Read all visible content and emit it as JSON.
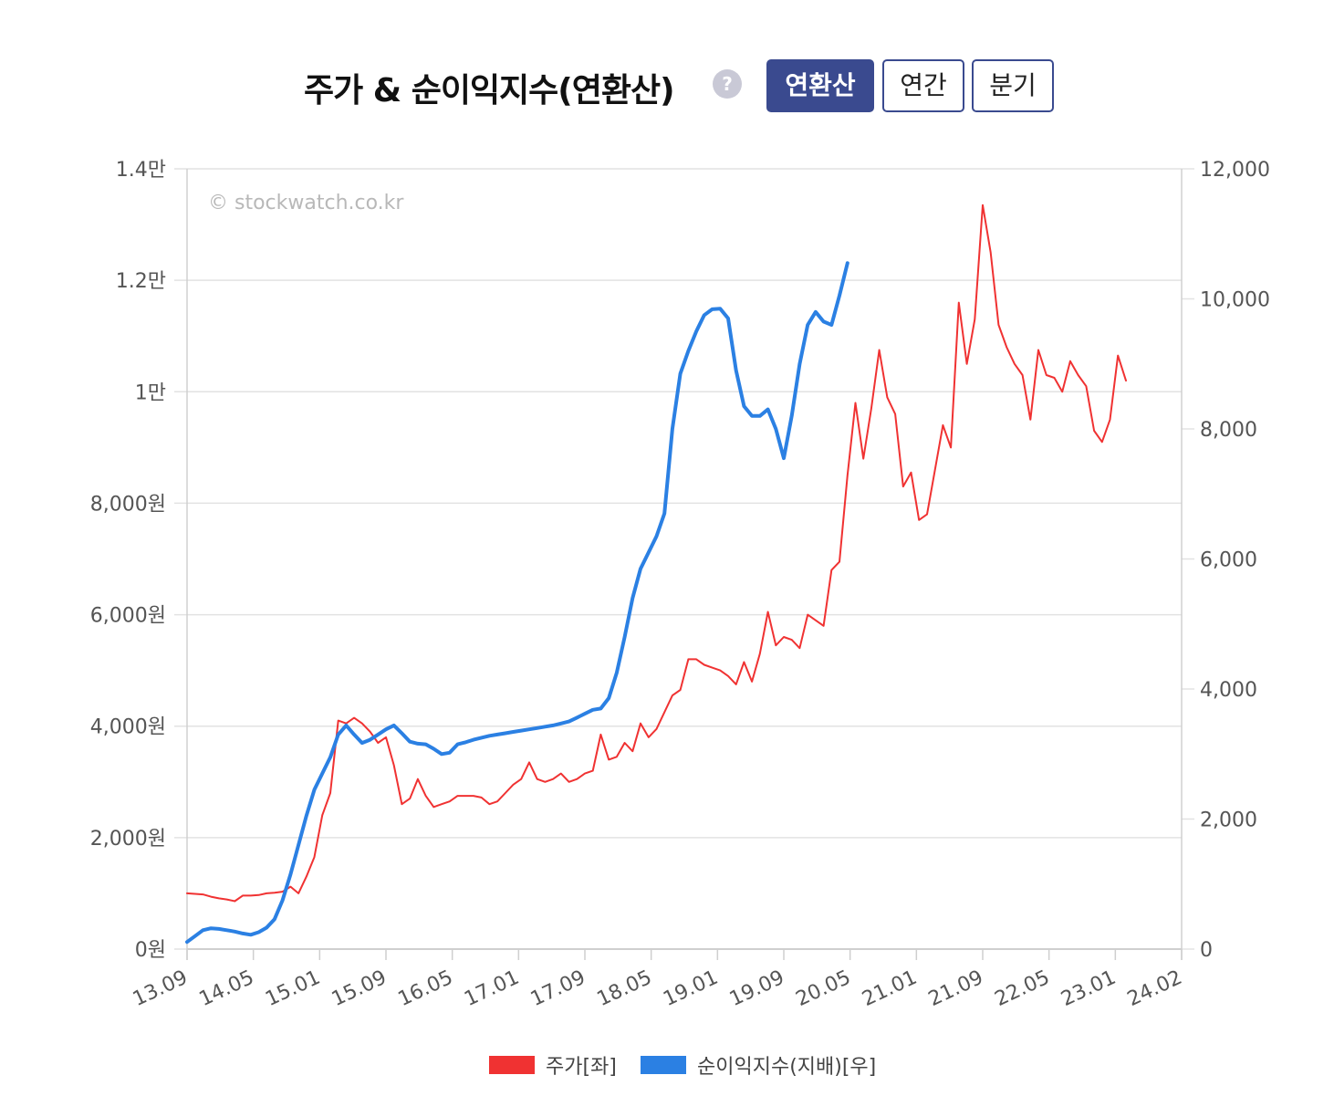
{
  "header": {
    "title": "주가 & 순이익지수(연환산)",
    "help_icon": "?",
    "tabs": [
      {
        "label": "연환산",
        "active": true
      },
      {
        "label": "연간",
        "active": false
      },
      {
        "label": "분기",
        "active": false
      }
    ]
  },
  "colors": {
    "price": "#f03232",
    "earnings": "#2b80e3",
    "tab_active": "#3a4a8f",
    "grid": "#e2e2e2",
    "axis_text": "#555555"
  },
  "chart_data": {
    "type": "line",
    "watermark": "© stockwatch.co.kr",
    "x_labels": [
      "13.09",
      "14.05",
      "15.01",
      "15.09",
      "16.05",
      "17.01",
      "17.09",
      "18.05",
      "19.01",
      "19.09",
      "20.05",
      "21.01",
      "21.09",
      "22.05",
      "23.01",
      "24.02"
    ],
    "x_range": [
      "2013-09",
      "2024-02"
    ],
    "y_left": {
      "min": 0,
      "max": 14000,
      "ticks": [
        0,
        2000,
        4000,
        6000,
        8000,
        10000,
        12000,
        14000
      ],
      "tick_labels": [
        "0원",
        "2,000원",
        "4,000원",
        "6,000원",
        "8,000원",
        "1만",
        "1.2만",
        "1.4만"
      ]
    },
    "y_right": {
      "min": 0,
      "max": 12000,
      "ticks": [
        0,
        2000,
        4000,
        6000,
        8000,
        10000,
        12000
      ],
      "tick_labels": [
        "0",
        "2,000",
        "4,000",
        "6,000",
        "8,000",
        "10,000",
        "12,000"
      ]
    },
    "grid": true,
    "legend_position": "bottom",
    "series": [
      {
        "name": "주가[좌]",
        "axis": "left",
        "points": [
          [
            "2013-09",
            1000
          ],
          [
            "2013-10",
            990
          ],
          [
            "2013-11",
            980
          ],
          [
            "2013-12",
            940
          ],
          [
            "2014-01",
            910
          ],
          [
            "2014-02",
            890
          ],
          [
            "2014-03",
            860
          ],
          [
            "2014-04",
            960
          ],
          [
            "2014-05",
            960
          ],
          [
            "2014-06",
            970
          ],
          [
            "2014-07",
            1000
          ],
          [
            "2014-08",
            1010
          ],
          [
            "2014-09",
            1030
          ],
          [
            "2014-10",
            1120
          ],
          [
            "2014-11",
            1000
          ],
          [
            "2014-12",
            1300
          ],
          [
            "2015-01",
            1650
          ],
          [
            "2015-02",
            2400
          ],
          [
            "2015-03",
            2800
          ],
          [
            "2015-04",
            4100
          ],
          [
            "2015-05",
            4050
          ],
          [
            "2015-06",
            4150
          ],
          [
            "2015-07",
            4050
          ],
          [
            "2015-08",
            3900
          ],
          [
            "2015-09",
            3700
          ],
          [
            "2015-10",
            3800
          ],
          [
            "2015-11",
            3300
          ],
          [
            "2015-12",
            2600
          ],
          [
            "2016-01",
            2700
          ],
          [
            "2016-02",
            3050
          ],
          [
            "2016-03",
            2750
          ],
          [
            "2016-04",
            2550
          ],
          [
            "2016-05",
            2600
          ],
          [
            "2016-06",
            2650
          ],
          [
            "2016-07",
            2750
          ],
          [
            "2016-08",
            2750
          ],
          [
            "2016-09",
            2750
          ],
          [
            "2016-10",
            2720
          ],
          [
            "2016-11",
            2600
          ],
          [
            "2016-12",
            2650
          ],
          [
            "2017-01",
            2800
          ],
          [
            "2017-02",
            2950
          ],
          [
            "2017-03",
            3050
          ],
          [
            "2017-04",
            3350
          ],
          [
            "2017-05",
            3050
          ],
          [
            "2017-06",
            3000
          ],
          [
            "2017-07",
            3050
          ],
          [
            "2017-08",
            3150
          ],
          [
            "2017-09",
            3000
          ],
          [
            "2017-10",
            3050
          ],
          [
            "2017-11",
            3150
          ],
          [
            "2017-12",
            3200
          ],
          [
            "2018-01",
            3850
          ],
          [
            "2018-02",
            3400
          ],
          [
            "2018-03",
            3450
          ],
          [
            "2018-04",
            3700
          ],
          [
            "2018-05",
            3550
          ],
          [
            "2018-06",
            4050
          ],
          [
            "2018-07",
            3800
          ],
          [
            "2018-08",
            3950
          ],
          [
            "2018-09",
            4250
          ],
          [
            "2018-10",
            4550
          ],
          [
            "2018-11",
            4650
          ],
          [
            "2018-12",
            5200
          ],
          [
            "2019-01",
            5200
          ],
          [
            "2019-02",
            5100
          ],
          [
            "2019-03",
            5050
          ],
          [
            "2019-04",
            5000
          ],
          [
            "2019-05",
            4900
          ],
          [
            "2019-06",
            4750
          ],
          [
            "2019-07",
            5150
          ],
          [
            "2019-08",
            4800
          ],
          [
            "2019-09",
            5300
          ],
          [
            "2019-10",
            6050
          ],
          [
            "2019-11",
            5450
          ],
          [
            "2019-12",
            5600
          ],
          [
            "2020-01",
            5550
          ],
          [
            "2020-02",
            5400
          ],
          [
            "2020-03",
            6000
          ],
          [
            "2020-04",
            5900
          ],
          [
            "2020-05",
            5800
          ],
          [
            "2020-06",
            6800
          ],
          [
            "2020-07",
            6950
          ],
          [
            "2020-08",
            8500
          ],
          [
            "2020-09",
            9800
          ],
          [
            "2020-10",
            8800
          ],
          [
            "2020-11",
            9700
          ],
          [
            "2020-12",
            10750
          ],
          [
            "2021-01",
            9900
          ],
          [
            "2021-02",
            9600
          ],
          [
            "2021-03",
            8300
          ],
          [
            "2021-04",
            8550
          ],
          [
            "2021-05",
            7700
          ],
          [
            "2021-06",
            7800
          ],
          [
            "2021-07",
            8600
          ],
          [
            "2021-08",
            9400
          ],
          [
            "2021-09",
            9000
          ],
          [
            "2021-10",
            11600
          ],
          [
            "2021-11",
            10500
          ],
          [
            "2021-12",
            11300
          ],
          [
            "2022-01",
            13350
          ],
          [
            "2022-02",
            12500
          ],
          [
            "2022-03",
            11200
          ],
          [
            "2022-04",
            10800
          ],
          [
            "2022-05",
            10500
          ],
          [
            "2022-06",
            10300
          ],
          [
            "2022-07",
            9500
          ],
          [
            "2022-08",
            10750
          ],
          [
            "2022-09",
            10300
          ],
          [
            "2022-10",
            10250
          ],
          [
            "2022-11",
            10000
          ],
          [
            "2022-12",
            10550
          ],
          [
            "2023-01",
            10300
          ],
          [
            "2023-02",
            10100
          ],
          [
            "2023-03",
            9300
          ],
          [
            "2023-04",
            9100
          ],
          [
            "2023-05",
            9500
          ],
          [
            "2023-06",
            10650
          ],
          [
            "2023-07",
            10200
          ]
        ]
      },
      {
        "name": "순이익지수(지배)[우]",
        "axis": "right",
        "points": [
          [
            "2013-09",
            110
          ],
          [
            "2013-10",
            200
          ],
          [
            "2013-11",
            290
          ],
          [
            "2013-12",
            320
          ],
          [
            "2014-01",
            310
          ],
          [
            "2014-02",
            290
          ],
          [
            "2014-03",
            270
          ],
          [
            "2014-04",
            240
          ],
          [
            "2014-05",
            220
          ],
          [
            "2014-06",
            260
          ],
          [
            "2014-07",
            330
          ],
          [
            "2014-08",
            460
          ],
          [
            "2014-09",
            750
          ],
          [
            "2014-10",
            1150
          ],
          [
            "2014-11",
            1600
          ],
          [
            "2014-12",
            2050
          ],
          [
            "2015-01",
            2450
          ],
          [
            "2015-02",
            2700
          ],
          [
            "2015-03",
            2950
          ],
          [
            "2015-04",
            3300
          ],
          [
            "2015-05",
            3440
          ],
          [
            "2015-06",
            3300
          ],
          [
            "2015-07",
            3170
          ],
          [
            "2015-08",
            3220
          ],
          [
            "2015-09",
            3300
          ],
          [
            "2015-10",
            3380
          ],
          [
            "2015-11",
            3440
          ],
          [
            "2015-12",
            3320
          ],
          [
            "2016-01",
            3190
          ],
          [
            "2016-02",
            3160
          ],
          [
            "2016-03",
            3150
          ],
          [
            "2016-04",
            3080
          ],
          [
            "2016-05",
            3000
          ],
          [
            "2016-06",
            3020
          ],
          [
            "2016-07",
            3150
          ],
          [
            "2016-08",
            3180
          ],
          [
            "2016-09",
            3220
          ],
          [
            "2016-10",
            3250
          ],
          [
            "2016-11",
            3280
          ],
          [
            "2016-12",
            3300
          ],
          [
            "2017-01",
            3320
          ],
          [
            "2017-02",
            3340
          ],
          [
            "2017-03",
            3360
          ],
          [
            "2017-04",
            3380
          ],
          [
            "2017-05",
            3400
          ],
          [
            "2017-06",
            3420
          ],
          [
            "2017-07",
            3440
          ],
          [
            "2017-08",
            3470
          ],
          [
            "2017-09",
            3500
          ],
          [
            "2017-10",
            3560
          ],
          [
            "2017-11",
            3620
          ],
          [
            "2017-12",
            3680
          ],
          [
            "2018-01",
            3700
          ],
          [
            "2018-02",
            3860
          ],
          [
            "2018-03",
            4250
          ],
          [
            "2018-04",
            4800
          ],
          [
            "2018-05",
            5400
          ],
          [
            "2018-06",
            5850
          ],
          [
            "2018-07",
            6100
          ],
          [
            "2018-08",
            6350
          ],
          [
            "2018-09",
            6700
          ],
          [
            "2018-10",
            8000
          ],
          [
            "2018-11",
            8850
          ],
          [
            "2018-12",
            9200
          ],
          [
            "2019-01",
            9500
          ],
          [
            "2019-02",
            9750
          ],
          [
            "2019-03",
            9840
          ],
          [
            "2019-04",
            9850
          ],
          [
            "2019-05",
            9700
          ],
          [
            "2019-06",
            8900
          ],
          [
            "2019-07",
            8350
          ],
          [
            "2019-08",
            8200
          ],
          [
            "2019-09",
            8200
          ],
          [
            "2019-10",
            8300
          ],
          [
            "2019-11",
            8000
          ],
          [
            "2019-12",
            7550
          ],
          [
            "2020-01",
            8200
          ],
          [
            "2020-02",
            9000
          ],
          [
            "2020-03",
            9600
          ],
          [
            "2020-04",
            9800
          ],
          [
            "2020-05",
            9650
          ],
          [
            "2020-06",
            9600
          ],
          [
            "2020-07",
            10050
          ],
          [
            "2020-08",
            10550
          ]
        ]
      }
    ]
  },
  "legend": [
    {
      "label": "주가[좌]",
      "color": "#f03232"
    },
    {
      "label": "순이익지수(지배)[우]",
      "color": "#2b80e3"
    }
  ]
}
